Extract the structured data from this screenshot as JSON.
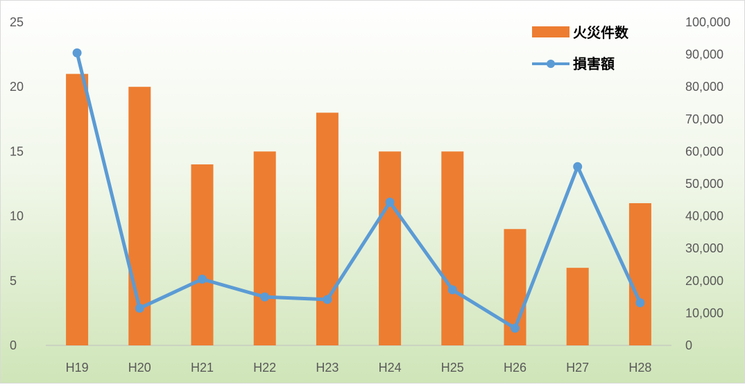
{
  "chart_data": {
    "type": "bar+line",
    "categories": [
      "H19",
      "H20",
      "H21",
      "H22",
      "H23",
      "H24",
      "H25",
      "H26",
      "H27",
      "H28"
    ],
    "series": [
      {
        "name": "火災件数",
        "type": "bar",
        "axis": "left",
        "color": "#ED7D31",
        "values": [
          21,
          20,
          14,
          15,
          18,
          15,
          15,
          9,
          6,
          11
        ]
      },
      {
        "name": "損害額",
        "type": "line",
        "axis": "right",
        "color": "#5B9BD5",
        "values": [
          90500,
          11500,
          20500,
          15000,
          14200,
          44300,
          17200,
          5300,
          55300,
          13200
        ]
      }
    ],
    "y_left": {
      "range": [
        0,
        25
      ],
      "ticks": [
        0,
        5,
        10,
        15,
        20,
        25
      ],
      "tick_labels": [
        "0",
        "5",
        "10",
        "15",
        "20",
        "25"
      ]
    },
    "y_right": {
      "range": [
        0,
        100000
      ],
      "ticks": [
        0,
        10000,
        20000,
        30000,
        40000,
        50000,
        60000,
        70000,
        80000,
        90000,
        100000
      ],
      "tick_labels": [
        "0",
        "10,000",
        "20,000",
        "30,000",
        "40,000",
        "50,000",
        "60,000",
        "70,000",
        "80,000",
        "90,000",
        "100,000"
      ]
    },
    "title": "",
    "xlabel": "",
    "ylabel": "",
    "grid": false,
    "legend_position": "top-right",
    "background": "gradient white to light green"
  }
}
